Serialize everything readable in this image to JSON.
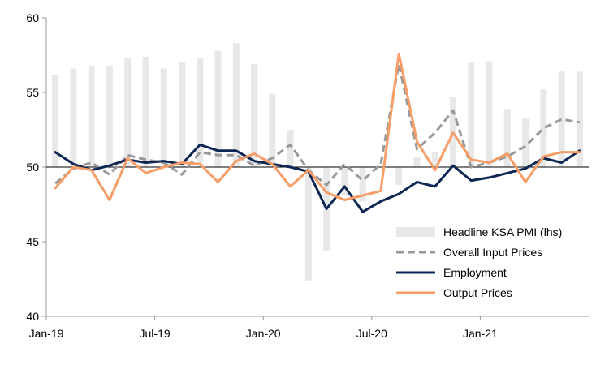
{
  "chart_data": {
    "type": "bar+line",
    "x": [
      "Jan-19",
      "Feb-19",
      "Mar-19",
      "Apr-19",
      "May-19",
      "Jun-19",
      "Jul-19",
      "Aug-19",
      "Sep-19",
      "Oct-19",
      "Nov-19",
      "Dec-19",
      "Jan-20",
      "Feb-20",
      "Mar-20",
      "Apr-20",
      "May-20",
      "Jun-20",
      "Jul-20",
      "Aug-20",
      "Sep-20",
      "Oct-20",
      "Nov-20",
      "Dec-20",
      "Jan-21",
      "Feb-21",
      "Mar-21",
      "Apr-21",
      "May-21",
      "Jun-21"
    ],
    "x_tick_labels": [
      "Jan-19",
      "Jul-19",
      "Jan-20",
      "Jul-20",
      "Jan-21"
    ],
    "x_tick_indices": [
      0,
      6,
      12,
      18,
      24
    ],
    "y_ticks": [
      40,
      45,
      50,
      55,
      60
    ],
    "ylim": [
      40,
      60
    ],
    "baseline": 50,
    "legend_position": "bottom-right",
    "grid": false,
    "series": [
      {
        "name": "Headline KSA PMI (lhs)",
        "kind": "bar",
        "color": "#e8e8e8",
        "values": [
          56.2,
          56.6,
          56.8,
          56.8,
          57.3,
          57.4,
          56.6,
          57.0,
          57.3,
          57.8,
          58.3,
          56.9,
          54.9,
          52.5,
          42.4,
          44.4,
          48.1,
          47.7,
          50.0,
          48.8,
          50.7,
          51.0,
          54.7,
          57.0,
          57.1,
          53.9,
          53.3,
          55.2,
          56.4,
          56.4
        ]
      },
      {
        "name": "Overall Input Prices",
        "kind": "line",
        "style": "dashed",
        "color": "#999999",
        "values": [
          48.9,
          49.9,
          50.3,
          49.5,
          50.8,
          50.5,
          50.3,
          49.5,
          51.0,
          50.8,
          50.8,
          50.1,
          50.6,
          51.5,
          49.8,
          48.8,
          50.2,
          49.1,
          50.2,
          56.9,
          51.2,
          52.3,
          53.8,
          50.0,
          50.3,
          50.7,
          51.4,
          52.6,
          53.2,
          53.0
        ]
      },
      {
        "name": "Employment",
        "kind": "line",
        "style": "solid",
        "color": "#0d2654",
        "values": [
          51.0,
          50.2,
          49.8,
          50.1,
          50.5,
          50.3,
          50.4,
          50.2,
          51.5,
          51.1,
          51.1,
          50.4,
          50.2,
          50.0,
          49.7,
          47.2,
          48.7,
          47.0,
          47.7,
          48.2,
          49.0,
          48.7,
          50.1,
          49.1,
          49.3,
          49.6,
          49.9,
          50.6,
          50.3,
          51.1
        ]
      },
      {
        "name": "Output Prices",
        "kind": "line",
        "style": "solid",
        "color": "#f79d67",
        "values": [
          48.6,
          50.0,
          49.8,
          47.8,
          50.6,
          49.6,
          50.0,
          50.3,
          50.2,
          49.0,
          50.4,
          50.9,
          50.2,
          48.7,
          49.8,
          48.3,
          47.8,
          48.1,
          48.4,
          57.6,
          51.7,
          49.8,
          52.3,
          50.5,
          50.3,
          50.9,
          49.0,
          50.7,
          51.0,
          51.0
        ]
      }
    ]
  },
  "colors": {
    "axis": "#999999",
    "baseline": "#000000"
  }
}
